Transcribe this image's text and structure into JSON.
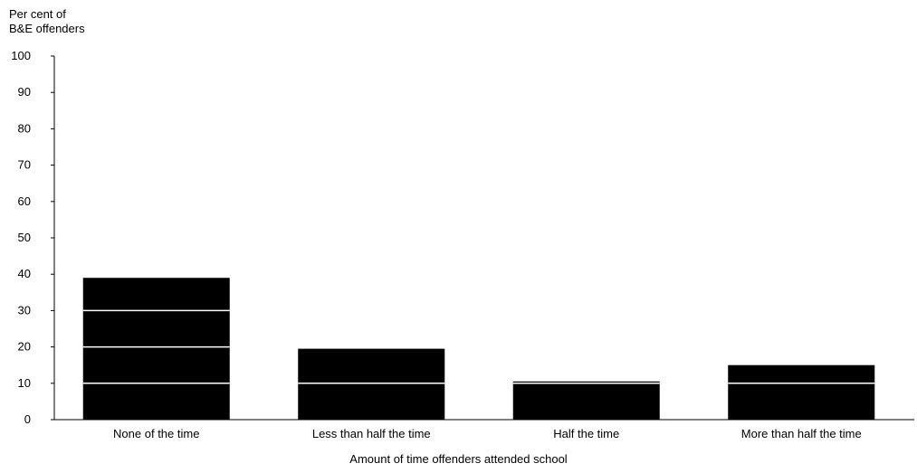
{
  "chart_data": {
    "type": "bar",
    "ylabel_lines": [
      "Per cent  of",
      "B&E offenders"
    ],
    "xlabel": "Amount of time offenders attended school",
    "categories": [
      "None of the time",
      "Less than half the time",
      "Half the time",
      "More than half the time"
    ],
    "values": [
      39,
      19.5,
      10.5,
      15
    ],
    "ylim": [
      0,
      100
    ],
    "yticks": [
      0,
      10,
      20,
      30,
      40,
      50,
      60,
      70,
      80,
      90,
      100
    ],
    "grid": false,
    "bar_color": "#000000",
    "gridline_color": "#ffffff"
  }
}
